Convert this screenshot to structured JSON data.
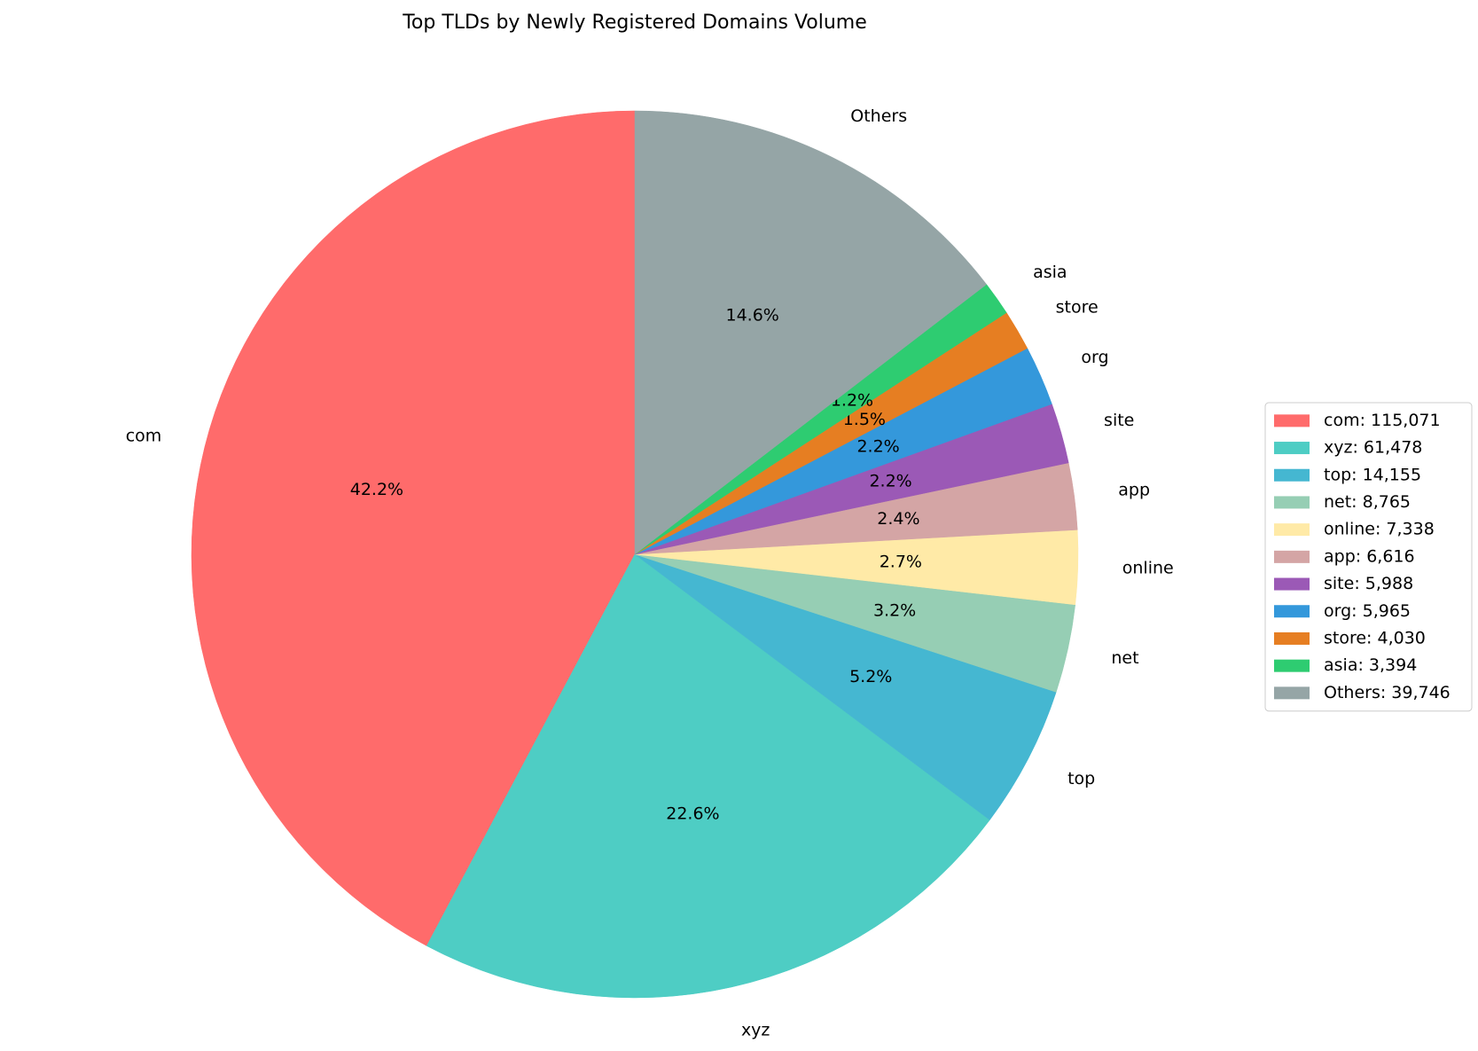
{
  "chart_data": {
    "type": "pie",
    "title": "Top TLDs by Newly Registered Domains Volume",
    "categories": [
      "com",
      "xyz",
      "top",
      "net",
      "online",
      "app",
      "site",
      "org",
      "store",
      "asia",
      "Others"
    ],
    "values": [
      115071,
      61478,
      14155,
      8765,
      7338,
      6616,
      5988,
      5965,
      4030,
      3394,
      39746
    ],
    "percent_labels": [
      "42.2%",
      "22.6%",
      "5.2%",
      "3.2%",
      "2.7%",
      "2.4%",
      "2.2%",
      "2.2%",
      "1.5%",
      "1.2%",
      "14.6%"
    ],
    "legend_labels": [
      "com: 115,071",
      "xyz: 61,478",
      "top: 14,155",
      "net: 8,765",
      "online: 7,338",
      "app: 6,616",
      "site: 5,988",
      "org: 5,965",
      "store: 4,030",
      "asia: 3,394",
      "Others: 39,746"
    ],
    "colors": [
      "#ff6b6b",
      "#4ecdc4",
      "#45b7d1",
      "#96ceb4",
      "#ffeaa7",
      "#d4a5a5",
      "#9b59b6",
      "#3498db",
      "#e67e22",
      "#2ecc71",
      "#95a5a6"
    ],
    "start_angle": 90,
    "legend": "right"
  }
}
